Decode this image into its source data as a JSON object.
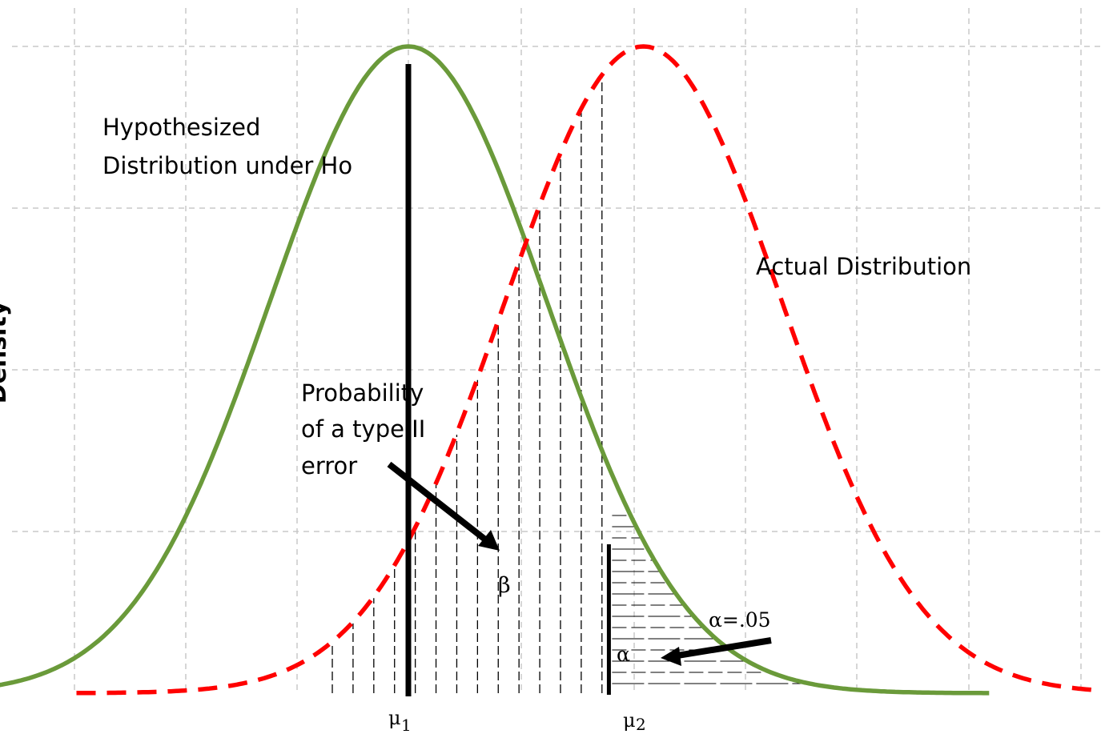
{
  "chart_data": {
    "type": "line",
    "ylabel": "Density",
    "xticks": [
      {
        "x": 0,
        "label": "μ",
        "sub": "1"
      },
      {
        "x": 1.7,
        "label": "μ",
        "sub": "2"
      }
    ],
    "series": [
      {
        "name": "Hypothesized Distribution under Ho",
        "mean": 0,
        "sd": 1,
        "color": "#6a9a3a",
        "style": "solid",
        "x_range": [
          -3.0,
          4.2
        ]
      },
      {
        "name": "Actual Distribution",
        "mean": 1.7,
        "sd": 1,
        "color": "#ff0000",
        "style": "dashed",
        "x_range": [
          -2.4,
          5.0
        ]
      }
    ],
    "critical_value": 1.45,
    "grid": true,
    "annotations": {
      "null_label_line1": "Hypothesized",
      "null_label_line2": "Distribution under Ho",
      "alt_label": "Actual Distribution",
      "beta_text_line1": "Probability",
      "beta_text_line2": "of a type II",
      "beta_text_line3": "error",
      "beta_symbol": "β",
      "alpha_label": "α=.05",
      "alpha_symbol": "α"
    }
  }
}
